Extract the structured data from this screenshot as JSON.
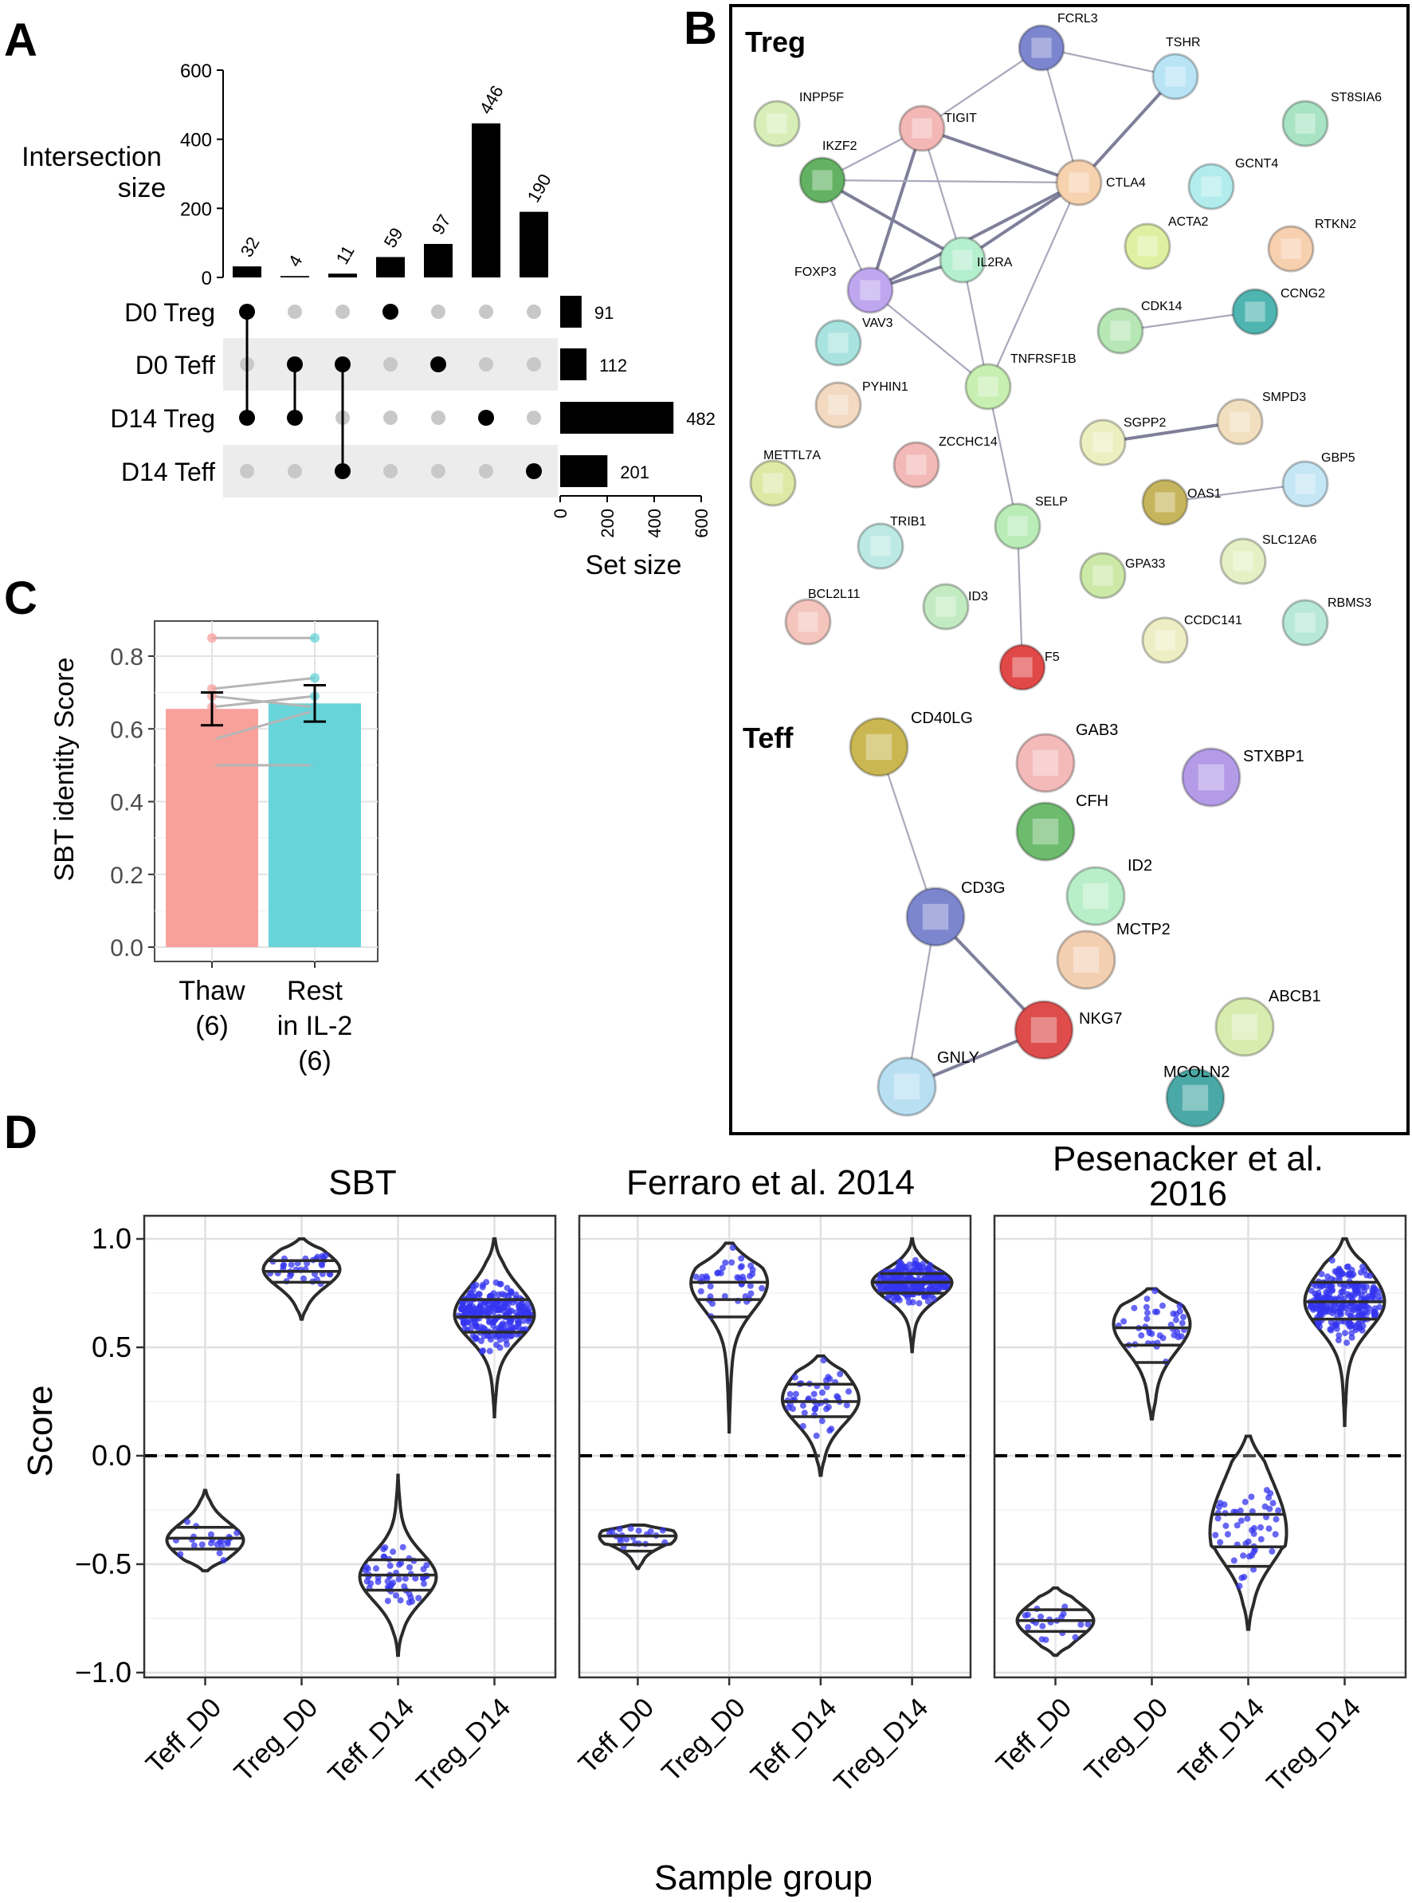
{
  "panels": {
    "a": "A",
    "b": "B",
    "c": "C",
    "d": "D"
  },
  "chart_data": [
    {
      "type": "bar",
      "id": "A-intersection",
      "title": "",
      "ylabel": "Intersection size",
      "ylabel_lines": [
        "Intersection",
        "size"
      ],
      "ylim": [
        0,
        600
      ],
      "yticks": [
        0,
        200,
        400,
        600
      ],
      "values": [
        32,
        4,
        11,
        59,
        97,
        446,
        190
      ],
      "sets": [
        "D0 Treg",
        "D0 Teff",
        "D14 Treg",
        "D14 Teff"
      ],
      "set_sizes": [
        91,
        112,
        482,
        201
      ],
      "set_size_label": "Set size",
      "set_size_ticks": [
        0,
        200,
        400,
        600
      ],
      "matrix": [
        [
          0,
          2
        ],
        [
          1,
          2
        ],
        [
          1,
          3
        ],
        [
          0
        ],
        [
          1
        ],
        [
          2
        ],
        [
          3
        ]
      ]
    },
    {
      "type": "bar",
      "id": "C-identity",
      "ylabel": "SBT identity Score",
      "ylim": [
        0,
        0.9
      ],
      "yticks": [
        "0.0",
        "0.2",
        "0.4",
        "0.6",
        "0.8"
      ],
      "categories": [
        [
          "Thaw",
          "(6)"
        ],
        [
          "Rest",
          "in IL-2",
          "(6)"
        ]
      ],
      "values": [
        0.655,
        0.67
      ],
      "errors": [
        0.045,
        0.05
      ],
      "colors": [
        "#f8a19b",
        "#66d4d8"
      ],
      "point_colors": [
        "#f8a19b",
        "#66d4d8"
      ],
      "paired_points": [
        [
          0.85,
          0.85
        ],
        [
          0.71,
          0.74
        ],
        [
          0.69,
          0.66
        ],
        [
          0.66,
          0.69
        ],
        [
          0.57,
          0.65
        ],
        [
          0.5,
          0.5
        ]
      ]
    },
    {
      "type": "violin",
      "id": "D-scores",
      "ylabel": "Score",
      "xlabel": "Sample group",
      "ylim": [
        -1.0,
        1.0
      ],
      "yticks": [
        "1.0",
        "0.5",
        "0.0",
        "-0.5",
        "-1.0"
      ],
      "groups": [
        "Teff_D0",
        "Treg_D0",
        "Teff_D14",
        "Treg_D14"
      ],
      "panels": [
        {
          "title": "SBT",
          "violins": [
            {
              "min": -0.53,
              "max": -0.16,
              "q1": -0.43,
              "med": -0.38,
              "q3": -0.33,
              "n": 22,
              "mode": -0.39
            },
            {
              "min": 0.63,
              "max": 1.0,
              "q1": 0.8,
              "med": 0.85,
              "q3": 0.9,
              "n": 35,
              "mode": 0.86
            },
            {
              "min": -0.92,
              "max": -0.09,
              "q1": -0.62,
              "med": -0.55,
              "q3": -0.48,
              "n": 55,
              "mode": -0.56
            },
            {
              "min": 0.18,
              "max": 1.0,
              "q1": 0.57,
              "med": 0.64,
              "q3": 0.72,
              "n": 260,
              "mode": 0.65
            }
          ]
        },
        {
          "title": "Ferraro et al. 2014",
          "violins": [
            {
              "min": -0.52,
              "max": -0.32,
              "q1": -0.44,
              "med": -0.41,
              "q3": -0.37,
              "n": 20,
              "mode": -0.37
            },
            {
              "min": 0.11,
              "max": 0.98,
              "q1": 0.64,
              "med": 0.72,
              "q3": 0.8,
              "n": 40,
              "mode": 0.8
            },
            {
              "min": -0.09,
              "max": 0.46,
              "q1": 0.18,
              "med": 0.25,
              "q3": 0.33,
              "n": 45,
              "mode": 0.26
            },
            {
              "min": 0.48,
              "max": 1.0,
              "q1": 0.75,
              "med": 0.8,
              "q3": 0.84,
              "n": 260,
              "mode": 0.8
            }
          ]
        },
        {
          "title": "Pesenacker et al. 2016",
          "title_lines": [
            "Pesenacker et al.",
            "2016"
          ],
          "violins": [
            {
              "min": -0.92,
              "max": -0.61,
              "q1": -0.81,
              "med": -0.76,
              "q3": -0.71,
              "n": 20,
              "mode": -0.76
            },
            {
              "min": 0.17,
              "max": 0.77,
              "q1": 0.43,
              "med": 0.51,
              "q3": 0.59,
              "n": 40,
              "mode": 0.61
            },
            {
              "min": -0.8,
              "max": 0.09,
              "q1": -0.51,
              "med": -0.42,
              "q3": -0.27,
              "n": 50,
              "mode": -0.35
            },
            {
              "min": 0.14,
              "max": 1.0,
              "q1": 0.63,
              "med": 0.71,
              "q3": 0.8,
              "n": 260,
              "mode": 0.71
            }
          ]
        }
      ]
    },
    {
      "type": "network",
      "id": "B-string",
      "groups": [
        "Treg",
        "Teff"
      ],
      "nodes": [
        {
          "id": "FCRL3",
          "color": "#7c86cf"
        },
        {
          "id": "TSHR",
          "color": "#b9e4f6"
        },
        {
          "id": "ST8SIA6",
          "color": "#a8e3c3"
        },
        {
          "id": "INPP5F",
          "color": "#d7eeb8"
        },
        {
          "id": "TIGIT",
          "color": "#f3b7b6"
        },
        {
          "id": "IKZF2",
          "color": "#63b263"
        },
        {
          "id": "CTLA4",
          "color": "#f6d2af"
        },
        {
          "id": "GCNT4",
          "color": "#b3ecec"
        },
        {
          "id": "ACTA2",
          "color": "#dff0a2"
        },
        {
          "id": "RTKN2",
          "color": "#f7d0b0"
        },
        {
          "id": "FOXP3",
          "color": "#bfa7f0"
        },
        {
          "id": "IL2RA",
          "color": "#b4efce"
        },
        {
          "id": "VAV3",
          "color": "#a9e3e0"
        },
        {
          "id": "CDK14",
          "color": "#b6e7b4"
        },
        {
          "id": "CCNG2",
          "color": "#4fb5b0"
        },
        {
          "id": "TNFRSF1B",
          "color": "#c8efb2"
        },
        {
          "id": "PYHIN1",
          "color": "#f2d9c0"
        },
        {
          "id": "SGPP2",
          "color": "#ecefc0"
        },
        {
          "id": "SMPD3",
          "color": "#f2dfbf"
        },
        {
          "id": "METTL7A",
          "color": "#dfe9a6"
        },
        {
          "id": "ZCCHC14",
          "color": "#f2b9b7"
        },
        {
          "id": "OAS1",
          "color": "#c6b55c"
        },
        {
          "id": "GBP5",
          "color": "#c4e6f5"
        },
        {
          "id": "SELP",
          "color": "#b9ecb6"
        },
        {
          "id": "TRIB1",
          "color": "#bde9e4"
        },
        {
          "id": "SLC12A6",
          "color": "#e5f0c4"
        },
        {
          "id": "GPA33",
          "color": "#cde9a8"
        },
        {
          "id": "ID3",
          "color": "#c3ebc2"
        },
        {
          "id": "BCL2L11",
          "color": "#f4c5bd"
        },
        {
          "id": "CCDC141",
          "color": "#eeeec4"
        },
        {
          "id": "RBMS3",
          "color": "#b8e9d8"
        },
        {
          "id": "F5",
          "color": "#e14848"
        },
        {
          "id": "CD40LG",
          "color": "#cbb752"
        },
        {
          "id": "GAB3",
          "color": "#f4b9b9"
        },
        {
          "id": "STXBP1",
          "color": "#b49be8"
        },
        {
          "id": "CFH",
          "color": "#6dbb6d"
        },
        {
          "id": "ID2",
          "color": "#b8eec8"
        },
        {
          "id": "CD3G",
          "color": "#7c86cf"
        },
        {
          "id": "MCTP2",
          "color": "#f3cfb2"
        },
        {
          "id": "ABCB1",
          "color": "#d9ecb0"
        },
        {
          "id": "NKG7",
          "color": "#de4c4c"
        },
        {
          "id": "GNLY",
          "color": "#b9dff3"
        },
        {
          "id": "MCOLN2",
          "color": "#4aa9a6"
        }
      ],
      "edges": [
        [
          "FCRL3",
          "TSHR"
        ],
        [
          "FCRL3",
          "TIGIT"
        ],
        [
          "FCRL3",
          "CTLA4"
        ],
        [
          "TSHR",
          "CTLA4"
        ],
        [
          "TIGIT",
          "IKZF2"
        ],
        [
          "TIGIT",
          "FOXP3"
        ],
        [
          "TIGIT",
          "IL2RA"
        ],
        [
          "TIGIT",
          "CTLA4"
        ],
        [
          "IKZF2",
          "FOXP3"
        ],
        [
          "IKZF2",
          "IL2RA"
        ],
        [
          "IKZF2",
          "CTLA4"
        ],
        [
          "FOXP3",
          "IL2RA"
        ],
        [
          "FOXP3",
          "CTLA4"
        ],
        [
          "FOXP3",
          "TNFRSF1B"
        ],
        [
          "IL2RA",
          "CTLA4"
        ],
        [
          "IL2RA",
          "TNFRSF1B"
        ],
        [
          "CTLA4",
          "TNFRSF1B"
        ],
        [
          "TNFRSF1B",
          "SELP"
        ],
        [
          "SELP",
          "F5"
        ],
        [
          "CDK14",
          "CCNG2"
        ],
        [
          "SGPP2",
          "SMPD3"
        ],
        [
          "OAS1",
          "GBP5"
        ],
        [
          "CD40LG",
          "CD3G"
        ],
        [
          "CD3G",
          "NKG7"
        ],
        [
          "CD3G",
          "GNLY"
        ],
        [
          "NKG7",
          "GNLY"
        ]
      ]
    }
  ]
}
